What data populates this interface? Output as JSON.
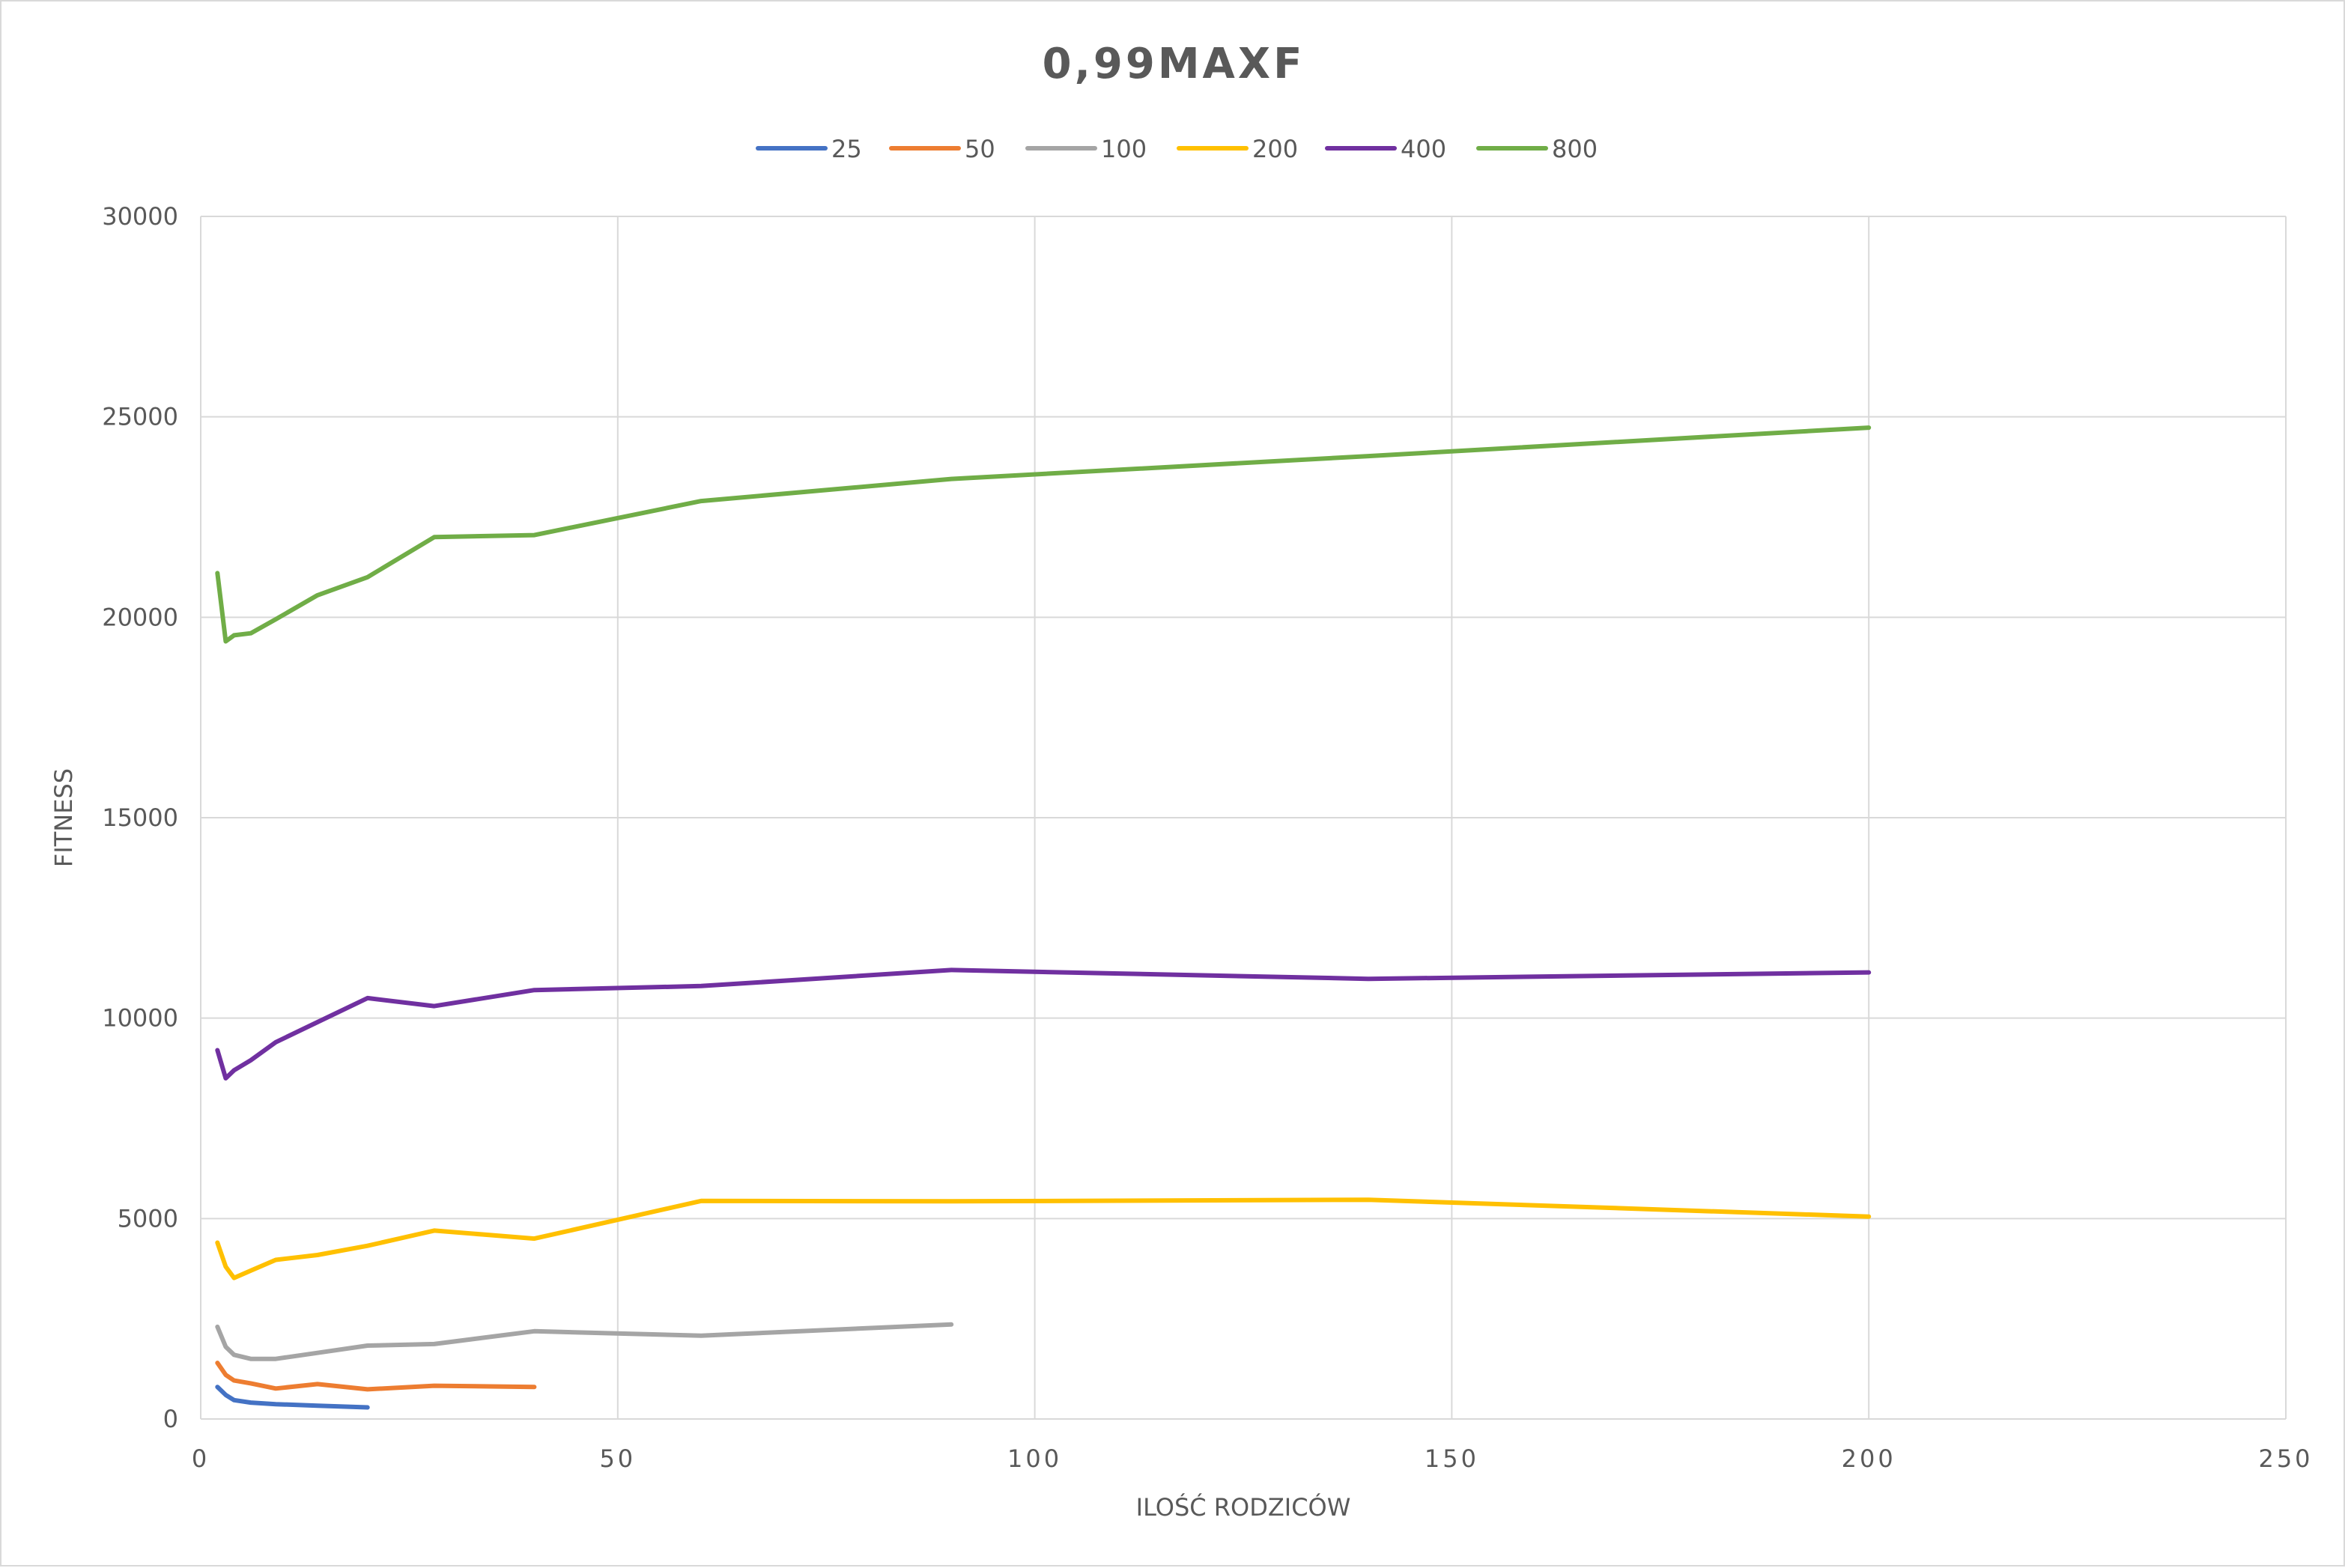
{
  "chart_data": {
    "type": "line",
    "title": "0,99MAXF",
    "xlabel": "ILOŚĆ RODZICÓW",
    "ylabel": "FITNESS",
    "xlim": [
      0,
      250
    ],
    "ylim": [
      0,
      30000
    ],
    "x_ticks": [
      "0",
      "50",
      "100",
      "150",
      "200",
      "250"
    ],
    "y_ticks": [
      "0",
      "5000",
      "10000",
      "15000",
      "20000",
      "25000",
      "30000"
    ],
    "grid": true,
    "legend_position": "top",
    "series": [
      {
        "name": "25",
        "color": "#4472C4",
        "x": [
          2,
          3,
          4,
          6,
          9,
          14,
          20
        ],
        "y": [
          800,
          600,
          470,
          410,
          370,
          330,
          290
        ]
      },
      {
        "name": "50",
        "color": "#ED7D31",
        "x": [
          2,
          3,
          4,
          6,
          9,
          14,
          20,
          28,
          40
        ],
        "y": [
          1400,
          1100,
          960,
          890,
          760,
          870,
          740,
          830,
          800
        ]
      },
      {
        "name": "100",
        "color": "#A5A5A5",
        "x": [
          2,
          3,
          4,
          6,
          9,
          14,
          20,
          28,
          40,
          60,
          90
        ],
        "y": [
          2300,
          1800,
          1600,
          1500,
          1500,
          1650,
          1830,
          1870,
          2190,
          2080,
          2360
        ]
      },
      {
        "name": "200",
        "color": "#FFC000",
        "x": [
          2,
          3,
          4,
          6,
          9,
          14,
          20,
          28,
          40,
          60,
          90,
          140,
          200
        ],
        "y": [
          4400,
          3800,
          3520,
          3700,
          3970,
          4090,
          4320,
          4700,
          4500,
          5440,
          5430,
          5470,
          5050
        ]
      },
      {
        "name": "400",
        "color": "#7030A0",
        "x": [
          2,
          3,
          4,
          6,
          9,
          14,
          20,
          28,
          40,
          60,
          90,
          140,
          200
        ],
        "y": [
          9200,
          8500,
          8700,
          8950,
          9400,
          9900,
          10500,
          10300,
          10700,
          10800,
          11200,
          10980,
          11140
        ]
      },
      {
        "name": "800",
        "color": "#70AD47",
        "x": [
          2,
          3,
          4,
          6,
          9,
          14,
          20,
          28,
          40,
          60,
          90,
          140,
          200
        ],
        "y": [
          21100,
          19400,
          19550,
          19600,
          19950,
          20550,
          21000,
          22000,
          22050,
          22900,
          23450,
          24020,
          24730
        ]
      }
    ]
  }
}
